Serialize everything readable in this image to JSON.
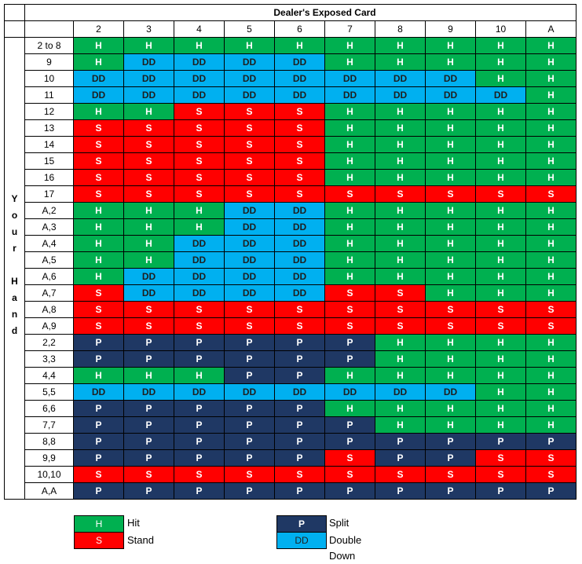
{
  "header": {
    "title": "Dealer's Exposed Card"
  },
  "dealer_cards": [
    "2",
    "3",
    "4",
    "5",
    "6",
    "7",
    "8",
    "9",
    "10",
    "A"
  ],
  "side_label": [
    "Y",
    "o",
    "u",
    "r",
    "",
    "H",
    "a",
    "n",
    "d"
  ],
  "rows": [
    {
      "hand": "2 to 8",
      "actions": [
        "H",
        "H",
        "H",
        "H",
        "H",
        "H",
        "H",
        "H",
        "H",
        "H"
      ]
    },
    {
      "hand": "9",
      "actions": [
        "H",
        "DD",
        "DD",
        "DD",
        "DD",
        "H",
        "H",
        "H",
        "H",
        "H"
      ]
    },
    {
      "hand": "10",
      "actions": [
        "DD",
        "DD",
        "DD",
        "DD",
        "DD",
        "DD",
        "DD",
        "DD",
        "H",
        "H"
      ]
    },
    {
      "hand": "11",
      "actions": [
        "DD",
        "DD",
        "DD",
        "DD",
        "DD",
        "DD",
        "DD",
        "DD",
        "DD",
        "H"
      ]
    },
    {
      "hand": "12",
      "actions": [
        "H",
        "H",
        "S",
        "S",
        "S",
        "H",
        "H",
        "H",
        "H",
        "H"
      ]
    },
    {
      "hand": "13",
      "actions": [
        "S",
        "S",
        "S",
        "S",
        "S",
        "H",
        "H",
        "H",
        "H",
        "H"
      ]
    },
    {
      "hand": "14",
      "actions": [
        "S",
        "S",
        "S",
        "S",
        "S",
        "H",
        "H",
        "H",
        "H",
        "H"
      ]
    },
    {
      "hand": "15",
      "actions": [
        "S",
        "S",
        "S",
        "S",
        "S",
        "H",
        "H",
        "H",
        "H",
        "H"
      ]
    },
    {
      "hand": "16",
      "actions": [
        "S",
        "S",
        "S",
        "S",
        "S",
        "H",
        "H",
        "H",
        "H",
        "H"
      ]
    },
    {
      "hand": "17",
      "actions": [
        "S",
        "S",
        "S",
        "S",
        "S",
        "S",
        "S",
        "S",
        "S",
        "S"
      ]
    },
    {
      "hand": "A,2",
      "actions": [
        "H",
        "H",
        "H",
        "DD",
        "DD",
        "H",
        "H",
        "H",
        "H",
        "H"
      ]
    },
    {
      "hand": "A,3",
      "actions": [
        "H",
        "H",
        "H",
        "DD",
        "DD",
        "H",
        "H",
        "H",
        "H",
        "H"
      ]
    },
    {
      "hand": "A,4",
      "actions": [
        "H",
        "H",
        "DD",
        "DD",
        "DD",
        "H",
        "H",
        "H",
        "H",
        "H"
      ]
    },
    {
      "hand": "A,5",
      "actions": [
        "H",
        "H",
        "DD",
        "DD",
        "DD",
        "H",
        "H",
        "H",
        "H",
        "H"
      ]
    },
    {
      "hand": "A,6",
      "actions": [
        "H",
        "DD",
        "DD",
        "DD",
        "DD",
        "H",
        "H",
        "H",
        "H",
        "H"
      ]
    },
    {
      "hand": "A,7",
      "actions": [
        "S",
        "DD",
        "DD",
        "DD",
        "DD",
        "S",
        "S",
        "H",
        "H",
        "H"
      ]
    },
    {
      "hand": "A,8",
      "actions": [
        "S",
        "S",
        "S",
        "S",
        "S",
        "S",
        "S",
        "S",
        "S",
        "S"
      ]
    },
    {
      "hand": "A,9",
      "actions": [
        "S",
        "S",
        "S",
        "S",
        "S",
        "S",
        "S",
        "S",
        "S",
        "S"
      ]
    },
    {
      "hand": "2,2",
      "actions": [
        "P",
        "P",
        "P",
        "P",
        "P",
        "P",
        "H",
        "H",
        "H",
        "H"
      ]
    },
    {
      "hand": "3,3",
      "actions": [
        "P",
        "P",
        "P",
        "P",
        "P",
        "P",
        "H",
        "H",
        "H",
        "H"
      ]
    },
    {
      "hand": "4,4",
      "actions": [
        "H",
        "H",
        "H",
        "P",
        "P",
        "H",
        "H",
        "H",
        "H",
        "H"
      ]
    },
    {
      "hand": "5,5",
      "actions": [
        "DD",
        "DD",
        "DD",
        "DD",
        "DD",
        "DD",
        "DD",
        "DD",
        "H",
        "H"
      ]
    },
    {
      "hand": "6,6",
      "actions": [
        "P",
        "P",
        "P",
        "P",
        "P",
        "H",
        "H",
        "H",
        "H",
        "H"
      ]
    },
    {
      "hand": "7,7",
      "actions": [
        "P",
        "P",
        "P",
        "P",
        "P",
        "P",
        "H",
        "H",
        "H",
        "H"
      ]
    },
    {
      "hand": "8,8",
      "actions": [
        "P",
        "P",
        "P",
        "P",
        "P",
        "P",
        "P",
        "P",
        "P",
        "P"
      ]
    },
    {
      "hand": "9,9",
      "actions": [
        "P",
        "P",
        "P",
        "P",
        "P",
        "S",
        "P",
        "P",
        "S",
        "S"
      ]
    },
    {
      "hand": "10,10",
      "actions": [
        "S",
        "S",
        "S",
        "S",
        "S",
        "S",
        "S",
        "S",
        "S",
        "S"
      ]
    },
    {
      "hand": "A,A",
      "actions": [
        "P",
        "P",
        "P",
        "P",
        "P",
        "P",
        "P",
        "P",
        "P",
        "P"
      ]
    }
  ],
  "legend": [
    {
      "code": "H",
      "label": "Hit",
      "color": "#00b050"
    },
    {
      "code": "S",
      "label": "Stand",
      "color": "#ff0000"
    },
    {
      "code": "P",
      "label": "Split",
      "color": "#1f3864"
    },
    {
      "code": "DD",
      "label": "Double Down",
      "color": "#00b0f0"
    }
  ]
}
